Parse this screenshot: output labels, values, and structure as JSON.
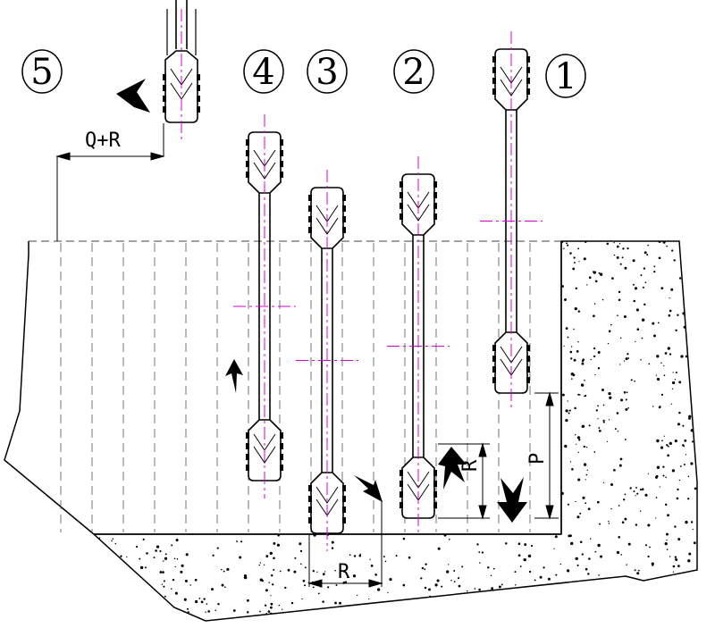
{
  "diagram": {
    "step_labels": [
      "1",
      "2",
      "3",
      "4",
      "5"
    ],
    "dimension_labels": {
      "q_plus_r": "Q+R",
      "r_bottom": "R",
      "r_vertical": "R",
      "p_vertical": "P"
    },
    "colors": {
      "line": "#000000",
      "centerline": "#d400d4",
      "hatch": "#555555",
      "gravel": "#000000"
    },
    "icons": [
      "arrow-left-icon",
      "arrow-up-icon",
      "arrow-down-right-icon",
      "arrow-up-icon",
      "arrow-down-icon"
    ]
  }
}
